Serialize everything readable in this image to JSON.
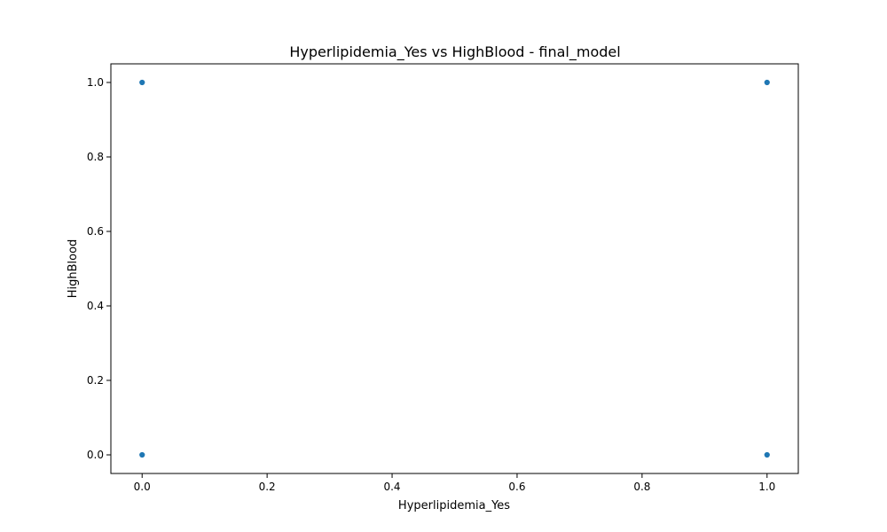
{
  "chart_data": {
    "type": "scatter",
    "title": "Hyperlipidemia_Yes vs HighBlood - final_model",
    "xlabel": "Hyperlipidemia_Yes",
    "ylabel": "HighBlood",
    "xlim": [
      -0.05,
      1.05
    ],
    "ylim": [
      -0.05,
      1.05
    ],
    "xticks": [
      0.0,
      0.2,
      0.4,
      0.6,
      0.8,
      1.0
    ],
    "yticks": [
      0.0,
      0.2,
      0.4,
      0.6,
      0.8,
      1.0
    ],
    "tick_labels_x": [
      "0.0",
      "0.2",
      "0.4",
      "0.6",
      "0.8",
      "1.0"
    ],
    "tick_labels_y": [
      "0.0",
      "0.2",
      "0.4",
      "0.6",
      "0.8",
      "1.0"
    ],
    "grid": false,
    "points": [
      {
        "x": 0.0,
        "y": 1.0
      },
      {
        "x": 1.0,
        "y": 1.0
      },
      {
        "x": 0.0,
        "y": 0.0
      },
      {
        "x": 1.0,
        "y": 0.0
      }
    ],
    "colors": {
      "marker": "#1f77b4",
      "axes": "#000000",
      "background": "#ffffff"
    }
  }
}
